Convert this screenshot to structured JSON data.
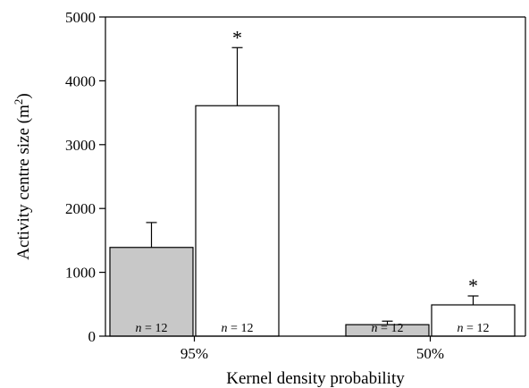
{
  "chart_data": {
    "type": "bar",
    "xlabel": "Kernel density probability",
    "ylabel": "Activity centre size (m",
    "ylabel_superscript": "2",
    "ylabel_close": ")",
    "ylim": [
      0,
      5000
    ],
    "yticks": [
      0,
      1000,
      2000,
      3000,
      4000,
      5000
    ],
    "grid": false,
    "categories": [
      "95%",
      "50%"
    ],
    "series": [
      {
        "color": "#c8c8c8",
        "values": [
          1390,
          180
        ],
        "errors": [
          390,
          55
        ],
        "n_labels": [
          "n = 12",
          "n = 12"
        ],
        "significance": [
          "",
          ""
        ]
      },
      {
        "color": "#ffffff",
        "values": [
          3610,
          490
        ],
        "errors": [
          910,
          140
        ],
        "n_labels": [
          "n = 12",
          "n = 12"
        ],
        "significance": [
          "*",
          "*"
        ]
      }
    ]
  }
}
